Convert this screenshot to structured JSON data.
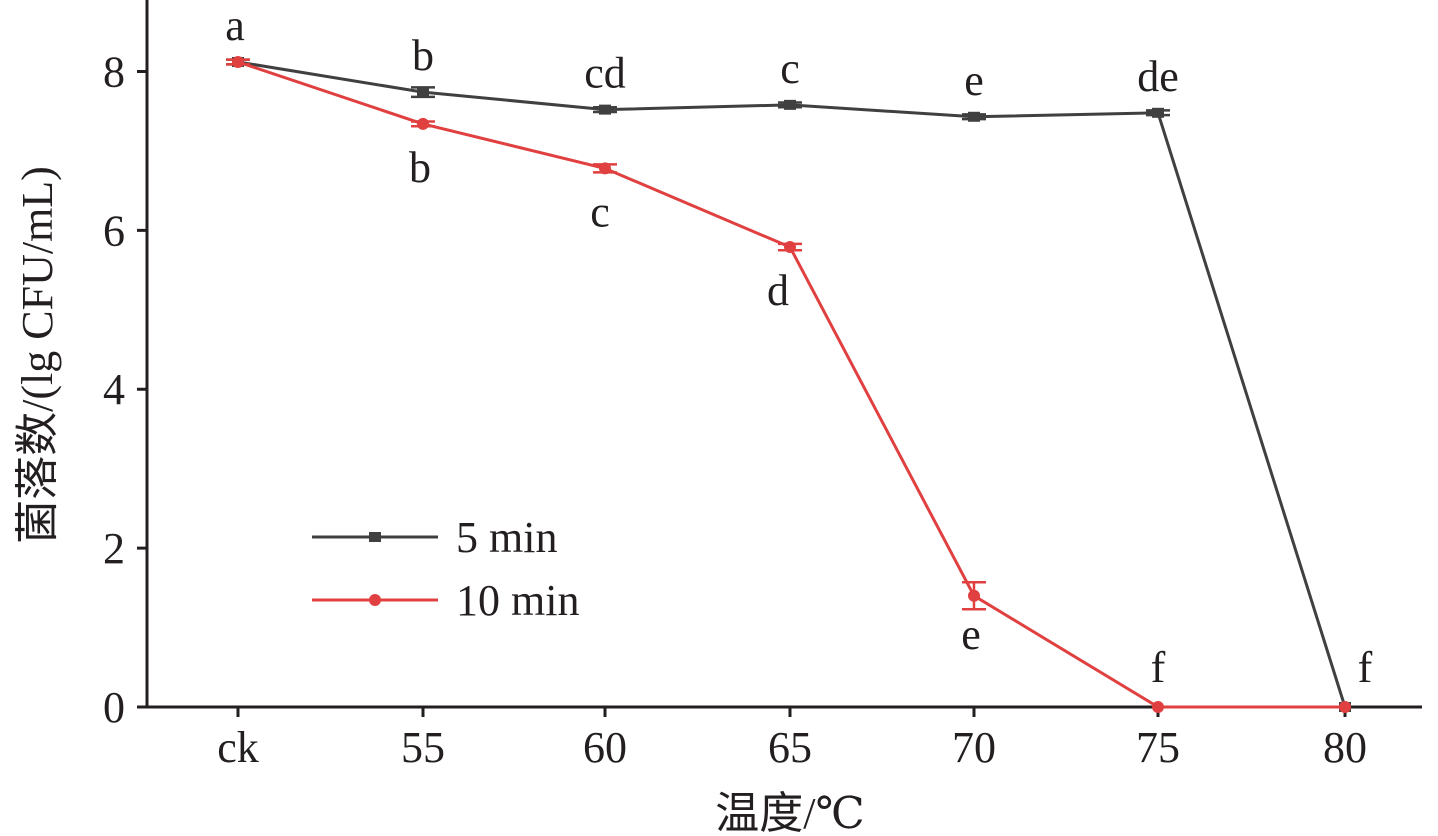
{
  "chart_data": {
    "type": "line",
    "title": "",
    "xlabel": "温度/℃",
    "ylabel": "菌落数/(lg CFU/mL)",
    "categories": [
      "ck",
      "55",
      "60",
      "65",
      "70",
      "75",
      "80"
    ],
    "ylim": [
      0,
      8.9
    ],
    "yticks": [
      "0",
      "2",
      "4",
      "6",
      "8"
    ],
    "grid": false,
    "legend_position": "lower-left",
    "series": [
      {
        "name": "5 min",
        "color": "#404040",
        "marker": "square",
        "values": [
          8.12,
          7.74,
          7.52,
          7.58,
          7.43,
          7.48,
          0.0
        ],
        "errors": [
          0.03,
          0.06,
          0.03,
          0.03,
          0.03,
          0.03,
          0.0
        ],
        "labels": [
          "a",
          "b",
          "cd",
          "c",
          "e",
          "de",
          "f"
        ]
      },
      {
        "name": "10 min",
        "color": "#e04040",
        "marker": "circle",
        "values": [
          8.12,
          7.34,
          6.78,
          5.79,
          1.4,
          0.0,
          0.0
        ],
        "errors": [
          0.03,
          0.03,
          0.05,
          0.04,
          0.17,
          0.0,
          0.0
        ],
        "labels": [
          "",
          "b",
          "c",
          "d",
          "e",
          "f",
          ""
        ]
      }
    ]
  }
}
